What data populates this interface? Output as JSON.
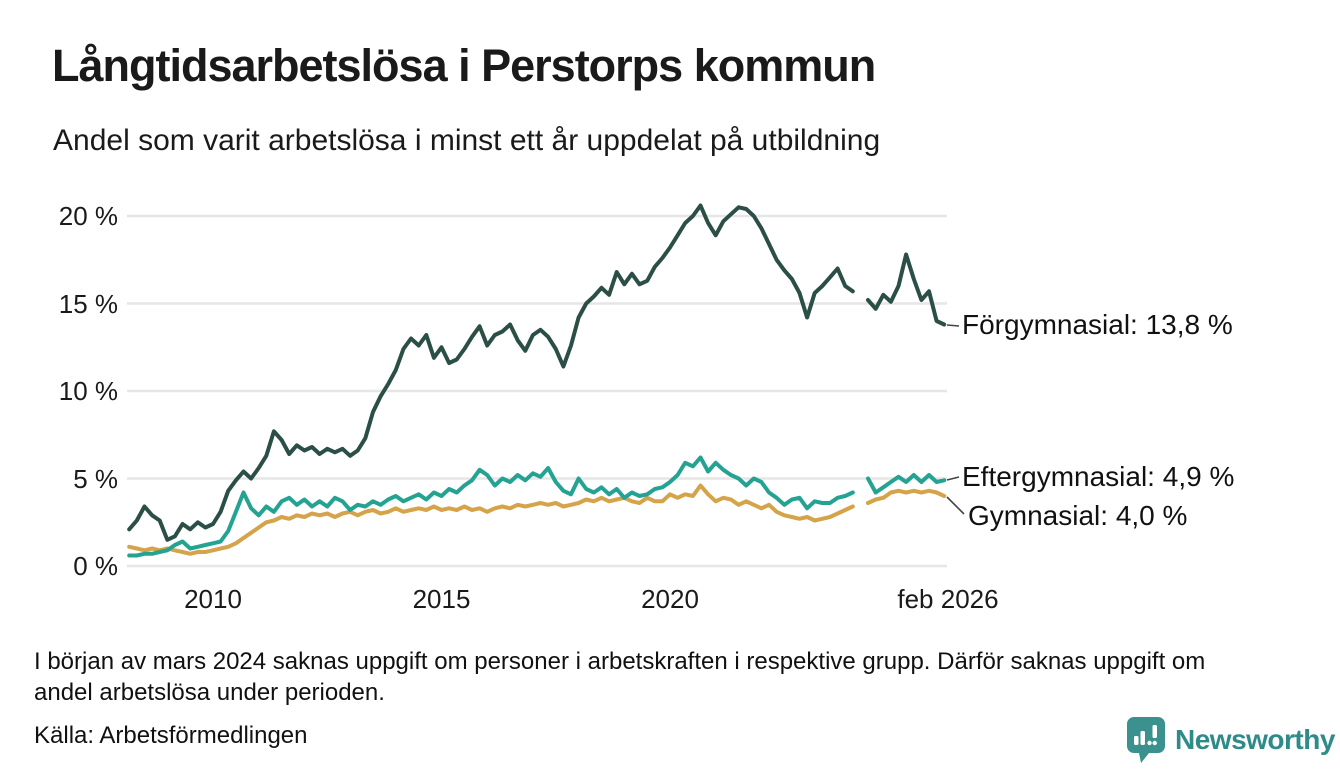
{
  "header": {
    "title": "Långtidsarbetslösa i Perstorps kommun",
    "subtitle": "Andel som varit arbetslösa i minst ett år uppdelat på utbildning"
  },
  "chart_data": {
    "type": "line",
    "title": "Långtidsarbetslösa i Perstorps kommun",
    "subtitle": "Andel som varit arbetslösa i minst ett år uppdelat på utbildning",
    "unit": "%",
    "x_start": 2008.1667,
    "x_step": 0.16667,
    "x_axis": {
      "ticks": [
        {
          "year": 2010,
          "label": "2010"
        },
        {
          "year": 2015,
          "label": "2015"
        },
        {
          "year": 2020,
          "label": "2020"
        },
        {
          "year": 2026.083,
          "label": "feb 2026"
        }
      ]
    },
    "y_axis": {
      "min": 0,
      "max": 21.5,
      "grid": true,
      "ticks": [
        {
          "value": 20,
          "label": "20 %"
        },
        {
          "value": 15,
          "label": "15 %"
        },
        {
          "value": 10,
          "label": "10 %"
        },
        {
          "value": 5,
          "label": "5 %"
        },
        {
          "value": 0,
          "label": "0 %"
        }
      ]
    },
    "gap_note": "values are null where data is missing (early 2024)",
    "series": [
      {
        "name": "Förgymnasial",
        "label": "Förgymnasial: 13,8 %",
        "end_value": 13.8,
        "color": "#2b4f46",
        "values": [
          2.1,
          2.6,
          3.4,
          2.9,
          2.6,
          1.5,
          1.7,
          2.4,
          2.1,
          2.5,
          2.2,
          2.4,
          3.1,
          4.3,
          4.9,
          5.4,
          5.0,
          5.6,
          6.3,
          7.7,
          7.2,
          6.4,
          6.9,
          6.6,
          6.8,
          6.4,
          6.7,
          6.5,
          6.7,
          6.3,
          6.6,
          7.3,
          8.8,
          9.7,
          10.4,
          11.2,
          12.4,
          13.0,
          12.6,
          13.2,
          11.9,
          12.5,
          11.6,
          11.8,
          12.4,
          13.1,
          13.7,
          12.6,
          13.2,
          13.4,
          13.8,
          12.9,
          12.3,
          13.2,
          13.5,
          13.1,
          12.4,
          11.4,
          12.6,
          14.2,
          15.0,
          15.4,
          15.9,
          15.5,
          16.8,
          16.1,
          16.7,
          16.1,
          16.3,
          17.1,
          17.6,
          18.2,
          18.9,
          19.6,
          20.0,
          20.6,
          19.6,
          18.9,
          19.7,
          20.1,
          20.5,
          20.4,
          20.0,
          19.3,
          18.4,
          17.5,
          16.9,
          16.4,
          15.6,
          14.2,
          15.6,
          16.0,
          16.5,
          17.0,
          16.0,
          15.7,
          null,
          15.2,
          14.7,
          15.5,
          15.1,
          16.0,
          17.8,
          16.4,
          15.2,
          15.7,
          14.0,
          13.8
        ]
      },
      {
        "name": "Eftergymnasial",
        "label": "Eftergymnasial:  4,9 %",
        "end_value": 4.9,
        "color": "#24a392",
        "values": [
          0.6,
          0.6,
          0.7,
          0.7,
          0.8,
          0.9,
          1.2,
          1.4,
          1.0,
          1.1,
          1.2,
          1.3,
          1.4,
          2.0,
          3.1,
          4.2,
          3.3,
          2.9,
          3.4,
          3.1,
          3.7,
          3.9,
          3.5,
          3.8,
          3.4,
          3.7,
          3.4,
          3.9,
          3.7,
          3.2,
          3.5,
          3.4,
          3.7,
          3.5,
          3.8,
          4.0,
          3.7,
          3.9,
          4.1,
          3.8,
          4.2,
          4.0,
          4.4,
          4.2,
          4.6,
          4.9,
          5.5,
          5.2,
          4.6,
          5.0,
          4.8,
          5.2,
          4.9,
          5.3,
          5.1,
          5.6,
          4.8,
          4.3,
          4.1,
          5.0,
          4.4,
          4.2,
          4.5,
          4.1,
          4.4,
          3.9,
          4.2,
          4.0,
          4.1,
          4.4,
          4.5,
          4.8,
          5.2,
          5.9,
          5.7,
          6.2,
          5.4,
          5.9,
          5.5,
          5.2,
          5.0,
          4.6,
          5.0,
          4.8,
          4.2,
          3.9,
          3.5,
          3.8,
          3.9,
          3.3,
          3.7,
          3.6,
          3.6,
          3.9,
          4.0,
          4.2,
          null,
          5.0,
          4.2,
          4.5,
          4.8,
          5.1,
          4.8,
          5.2,
          4.8,
          5.2,
          4.8,
          4.9
        ]
      },
      {
        "name": "Gymnasial",
        "label": "Gymnasial:  4,0 %",
        "end_value": 4.0,
        "color": "#d5a34a",
        "values": [
          1.1,
          1.0,
          0.9,
          1.0,
          0.9,
          1.0,
          0.9,
          0.8,
          0.7,
          0.8,
          0.8,
          0.9,
          1.0,
          1.1,
          1.3,
          1.6,
          1.9,
          2.2,
          2.5,
          2.6,
          2.8,
          2.7,
          2.9,
          2.8,
          3.0,
          2.9,
          3.0,
          2.8,
          3.0,
          3.1,
          2.9,
          3.1,
          3.2,
          3.0,
          3.1,
          3.3,
          3.1,
          3.2,
          3.3,
          3.2,
          3.4,
          3.2,
          3.3,
          3.2,
          3.4,
          3.2,
          3.3,
          3.1,
          3.3,
          3.4,
          3.3,
          3.5,
          3.4,
          3.5,
          3.6,
          3.5,
          3.6,
          3.4,
          3.5,
          3.6,
          3.8,
          3.7,
          3.9,
          3.7,
          3.8,
          3.9,
          3.7,
          3.6,
          3.9,
          3.7,
          3.7,
          4.1,
          3.9,
          4.1,
          4.0,
          4.6,
          4.1,
          3.7,
          3.9,
          3.8,
          3.5,
          3.7,
          3.5,
          3.3,
          3.5,
          3.1,
          2.9,
          2.8,
          2.7,
          2.8,
          2.6,
          2.7,
          2.8,
          3.0,
          3.2,
          3.4,
          null,
          3.6,
          3.8,
          3.9,
          4.2,
          4.3,
          4.2,
          4.3,
          4.2,
          4.3,
          4.2,
          4.0
        ]
      }
    ]
  },
  "footnote": {
    "line1": "I början av mars 2024 saknas uppgift om personer i arbetskraften i respektive grupp. Därför saknas uppgift om",
    "line2": "andel arbetslösa under perioden."
  },
  "source": {
    "text": "Källa: Arbetsförmedlingen"
  },
  "logo": {
    "brand": "Newsworthy",
    "icon_color": "#3a918e",
    "text_color": "#2e8b89"
  }
}
